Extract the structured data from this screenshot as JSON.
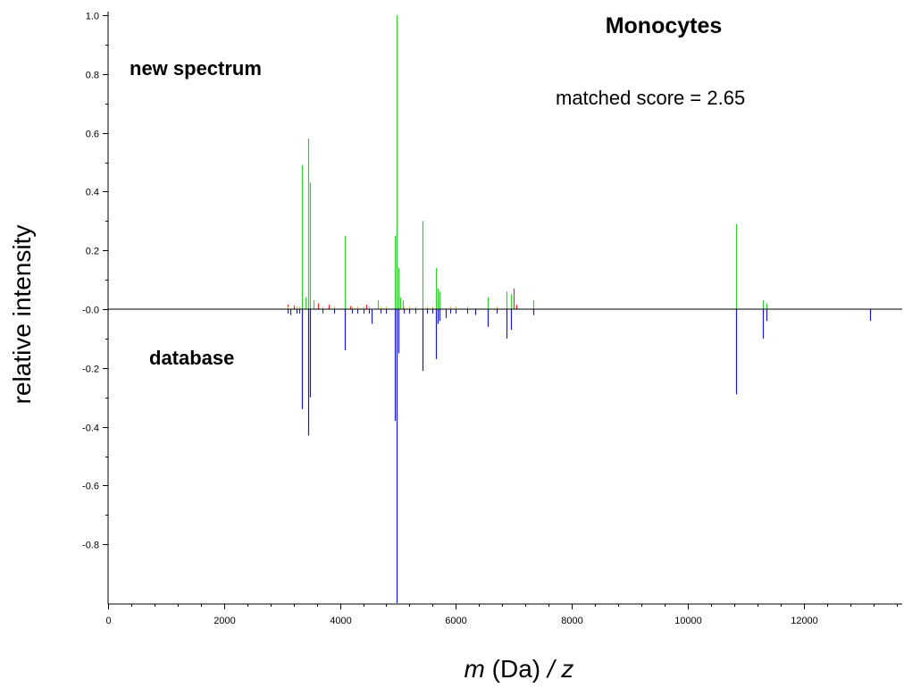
{
  "chart_data": {
    "type": "bar",
    "title": "Monocytes",
    "annotation": "matched score = 2.65",
    "upper_label": "new spectrum",
    "lower_label": "database",
    "ylabel": "relative intensity",
    "xlabel_italic_prefix": "m",
    "xlabel_middle": " (Da) ",
    "xlabel_italic_suffix": "/ z",
    "xlim": [
      0,
      13700
    ],
    "ylim": [
      -1.0,
      1.0
    ],
    "x_ticks": [
      0,
      2000,
      4000,
      6000,
      8000,
      10000,
      12000
    ],
    "x_tick_labels": [
      "0",
      "2000",
      "4000",
      "6000",
      "8000",
      "10000",
      "12000"
    ],
    "y_ticks": [
      1.0,
      0.8,
      0.6,
      0.4,
      0.2,
      0.0,
      -0.2,
      -0.4,
      -0.6,
      -0.8
    ],
    "y_tick_labels": [
      "1.0",
      "0.8",
      "0.6",
      "0.4",
      "0.2",
      "-0.0",
      "-0.2",
      "-0.4",
      "-0.6",
      "-0.8"
    ],
    "grid": false,
    "colors": {
      "matched": "#33cc33",
      "unmatched_new": "#ee2222",
      "database": "#1a1acc",
      "faint": "#d8c060"
    },
    "series": [
      {
        "name": "new spectrum matched",
        "color": "#33cc33",
        "x": [
          3350,
          3400,
          3450,
          3490,
          3550,
          4080,
          4650,
          4950,
          4985,
          5010,
          5040,
          5080,
          5430,
          5660,
          5690,
          5720,
          6550,
          6870,
          6950,
          7340,
          10830,
          11300,
          11350
        ],
        "values": [
          0.49,
          0.04,
          0.58,
          0.43,
          0.03,
          0.25,
          0.03,
          0.25,
          1.0,
          0.14,
          0.04,
          0.03,
          0.3,
          0.14,
          0.07,
          0.06,
          0.04,
          0.06,
          0.05,
          0.03,
          0.29,
          0.03,
          0.02
        ]
      },
      {
        "name": "new spectrum unmatched",
        "color": "#ee2222",
        "x": [
          3100,
          3200,
          3620,
          3800,
          4180,
          4450,
          6990,
          7050
        ],
        "values": [
          0.015,
          0.012,
          0.02,
          0.015,
          0.01,
          0.015,
          0.07,
          0.015
        ]
      },
      {
        "name": "database",
        "color": "#1a1acc",
        "x": [
          3150,
          3350,
          3450,
          3490,
          4080,
          4550,
          4950,
          4985,
          5010,
          5430,
          5660,
          5690,
          5720,
          5820,
          6330,
          6550,
          6870,
          6950,
          7340,
          10830,
          11300,
          11350,
          13150
        ],
        "values": [
          -0.02,
          -0.34,
          -0.43,
          -0.3,
          -0.14,
          -0.05,
          -0.38,
          -1.0,
          -0.15,
          -0.21,
          -0.17,
          -0.05,
          -0.04,
          -0.03,
          -0.02,
          -0.06,
          -0.1,
          -0.07,
          -0.02,
          -0.29,
          -0.1,
          -0.04,
          -0.04
        ]
      }
    ]
  }
}
